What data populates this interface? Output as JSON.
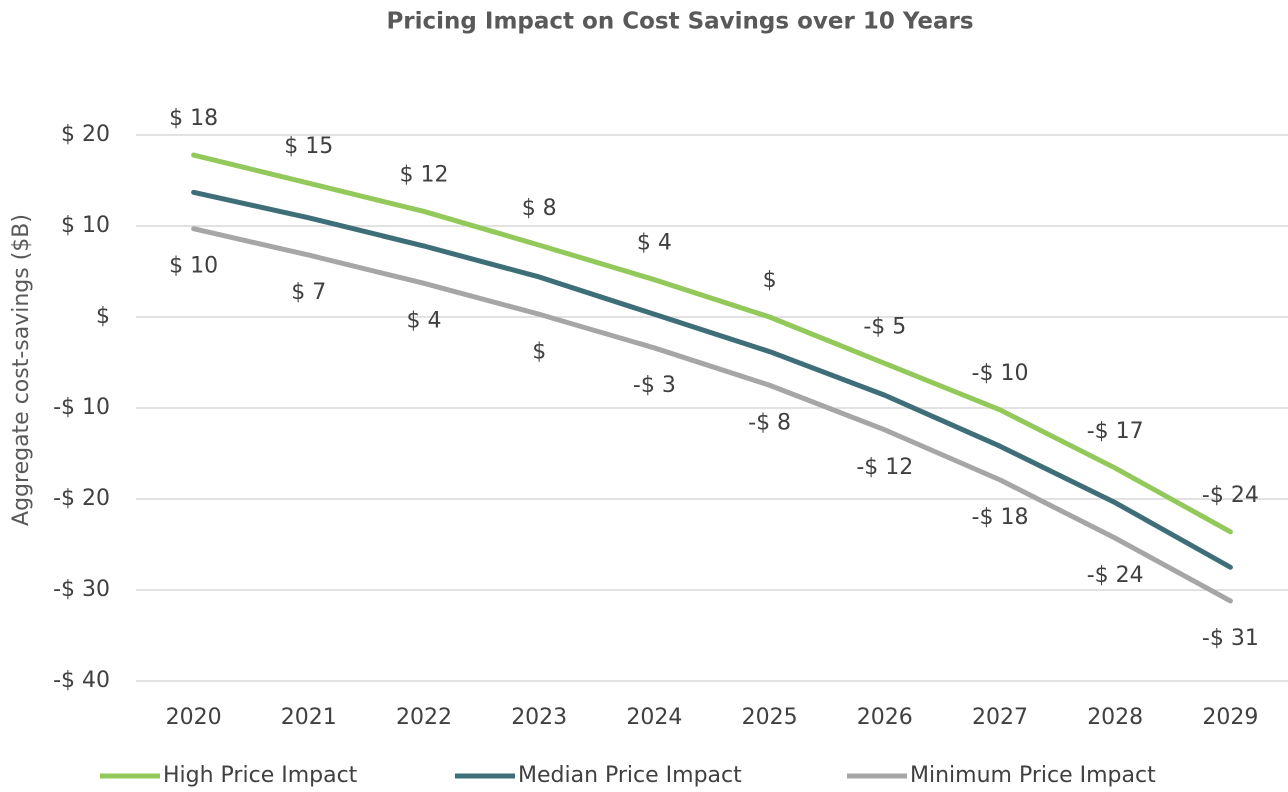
{
  "chart_data": {
    "type": "line",
    "title": "Pricing Impact on Cost Savings over 10 Years",
    "y_label": "Aggregate cost-savings ($B)",
    "categories": [
      "2020",
      "2021",
      "2022",
      "2023",
      "2024",
      "2025",
      "2026",
      "2027",
      "2028",
      "2029"
    ],
    "series": [
      {
        "name": "High Price Impact",
        "color": "#92c95a",
        "values": [
          17.8,
          14.7,
          11.6,
          7.9,
          4.1,
          0,
          -5.1,
          -10.2,
          -16.6,
          -23.6
        ],
        "value_labels": [
          "$ 18",
          "$ 15",
          "$ 12",
          "$ 8",
          "$ 4",
          "$",
          "-$ 5",
          "-$ 10",
          "-$ 17",
          "-$ 24"
        ]
      },
      {
        "name": "Median Price Impact",
        "color": "#3e6f79",
        "values": [
          13.7,
          10.9,
          7.8,
          4.4,
          0.3,
          -3.8,
          -8.6,
          -14.2,
          -20.4,
          -27.5
        ]
      },
      {
        "name": "Minimum Price Impact",
        "color": "#a6a6a6",
        "values": [
          9.7,
          6.8,
          3.7,
          0.3,
          -3.4,
          -7.5,
          -12.4,
          -17.9,
          -24.3,
          -31.2
        ],
        "value_labels": [
          "$ 10",
          "$ 7",
          "$ 4",
          "$",
          "-$ 3",
          "-$ 8",
          "-$ 12",
          "-$ 18",
          "-$ 24",
          "-$ 31"
        ]
      }
    ],
    "ylim": [
      -40,
      20
    ],
    "yticks": [
      {
        "value": -40,
        "label": "-$ 40"
      },
      {
        "value": -30,
        "label": "-$ 30"
      },
      {
        "value": -20,
        "label": "-$ 20"
      },
      {
        "value": -10,
        "label": "-$ 10"
      },
      {
        "value": 0,
        "label": "$"
      },
      {
        "value": 10,
        "label": "$ 10"
      },
      {
        "value": 20,
        "label": "$ 20"
      }
    ],
    "grid": true,
    "legend": "bottom"
  }
}
